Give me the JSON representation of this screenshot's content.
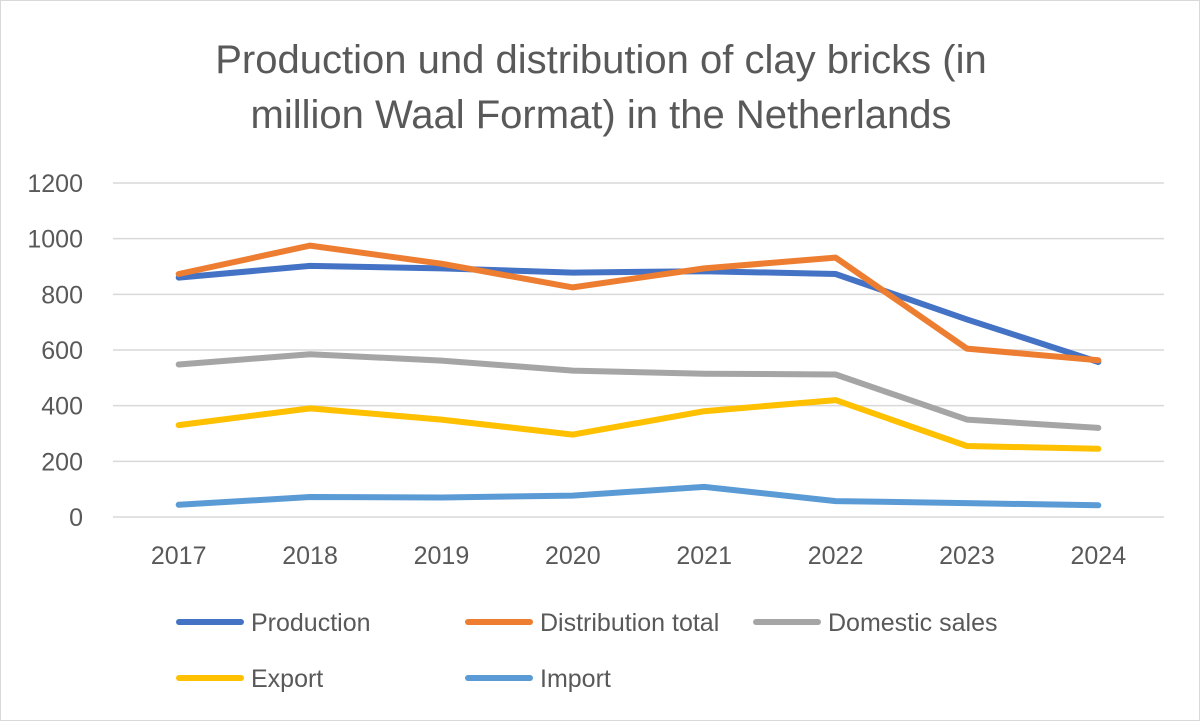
{
  "chart_data": {
    "type": "line",
    "title_lines": [
      "Production und distribution of clay bricks (in",
      "million Waal Format) in the Netherlands"
    ],
    "categories": [
      "2017",
      "2018",
      "2019",
      "2020",
      "2021",
      "2022",
      "2023",
      "2024"
    ],
    "ylim": [
      0,
      1200
    ],
    "yticks": [
      0,
      200,
      400,
      600,
      800,
      1000,
      1200
    ],
    "grid": true,
    "legend_position": "bottom",
    "series": [
      {
        "name": "Production",
        "color": "#4472c4",
        "values": [
          860,
          902,
          893,
          878,
          883,
          873,
          710,
          557
        ]
      },
      {
        "name": "Distribution total",
        "color": "#ed7d31",
        "values": [
          873,
          975,
          910,
          825,
          893,
          932,
          605,
          563
        ]
      },
      {
        "name": "Domestic sales",
        "color": "#a5a5a5",
        "values": [
          548,
          585,
          562,
          526,
          515,
          512,
          350,
          320
        ]
      },
      {
        "name": "Export",
        "color": "#ffc000",
        "values": [
          330,
          390,
          350,
          296,
          380,
          420,
          255,
          245
        ]
      },
      {
        "name": "Import",
        "color": "#5b9bd5",
        "values": [
          44,
          72,
          70,
          77,
          108,
          57,
          50,
          42
        ]
      }
    ]
  }
}
